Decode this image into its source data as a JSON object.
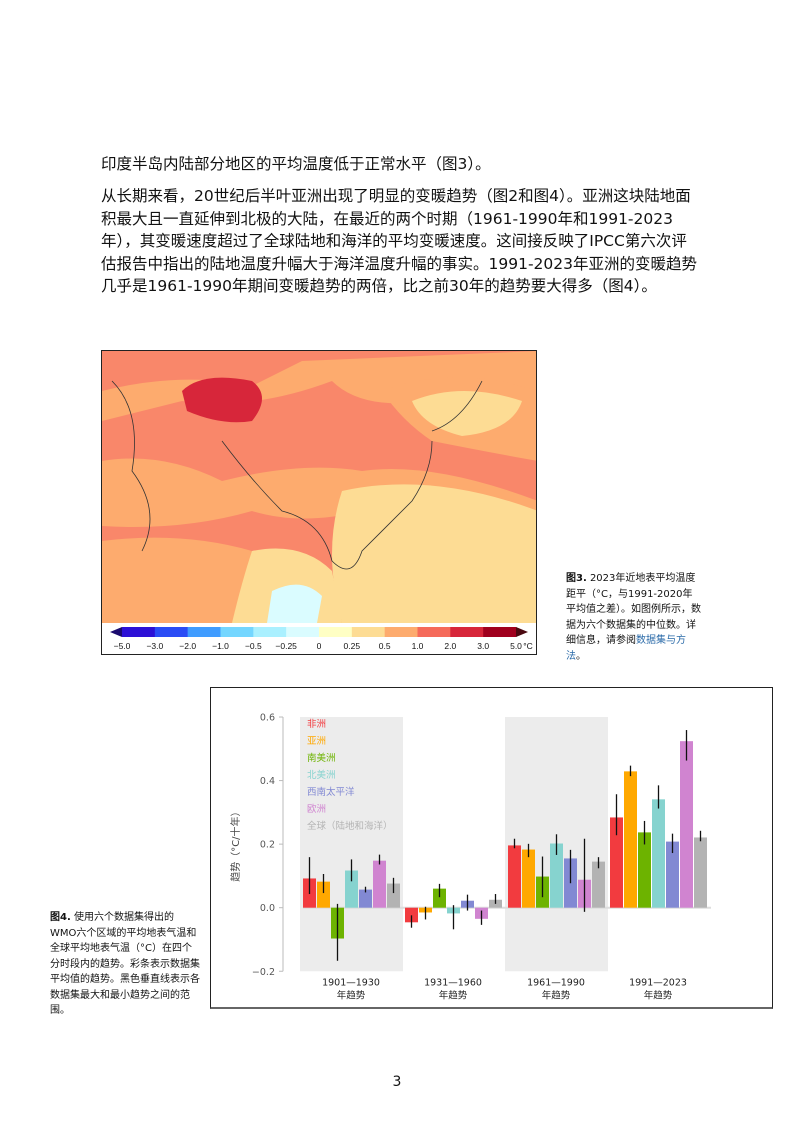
{
  "paragraphs": [
    "印度半岛内陆部分地区的平均温度低于正常水平（图3）。",
    "从长期来看，20世纪后半叶亚洲出现了明显的变暖趋势（图2和图4）。亚洲这块陆地面积最大且一直延伸到北极的大陆，在最近的两个时期（1961-1990年和1991-2023年），其变暖速度超过了全球陆地和海洋的平均变暖速度。这间接反映了IPCC第六次评估报告中指出的陆地温度升幅大于海洋温度升幅的事实。1991-2023年亚洲的变暖趋势几乎是1961-1990年期间变暖趋势的两倍，比之前30年的趋势要大得多（图4）。"
  ],
  "figure3": {
    "caption_label": "图3.",
    "caption_text": " 2023年近地表平均温度距平（°C，与1991-2020年平均值之差）。如图例所示，数据为六个数据集的中位数。详细信息，请参阅",
    "caption_link": "数据集与方法",
    "caption_end": "。",
    "legend_ticks": [
      "−5.0",
      "−3.0",
      "−2.0",
      "−1.0",
      "−0.5",
      "−0.25",
      "0",
      "0.25",
      "0.5",
      "1.0",
      "2.0",
      "3.0",
      "5.0"
    ],
    "legend_unit": "°C",
    "legend_colors": [
      "#1a0a6e",
      "#2c10d6",
      "#2a4cf5",
      "#3f9cff",
      "#74d6ff",
      "#aaf0ff",
      "#dafcff",
      "#ffffc4",
      "#fddc94",
      "#fdab6e",
      "#f56a5a",
      "#d7263a",
      "#a0001e",
      "#4a0810"
    ]
  },
  "figure4": {
    "caption_label": "图4.",
    "caption_text": " 使用六个数据集得出的WMO六个区域的平均地表气温和全球平均地表气温（°C）在四个分时段内的趋势。彩条表示数据集平均值的趋势。黑色垂直线表示各数据集最大和最小趋势之间的范围。"
  },
  "chart_data": {
    "type": "bar",
    "ylabel": "趋势（°C/十年）",
    "ylim": [
      -0.2,
      0.6
    ],
    "yticks": [
      "0.6",
      "0.4",
      "0.2",
      "0.0",
      "−0.2"
    ],
    "ytick_values": [
      0.6,
      0.4,
      0.2,
      0.0,
      -0.2
    ],
    "categories": [
      "1901—1930\n年趋势",
      "1931—1960\n年趋势",
      "1961—1990\n年趋势",
      "1991—2023\n年趋势"
    ],
    "category_lines": [
      [
        "1901—1930",
        "年趋势"
      ],
      [
        "1931—1960",
        "年趋势"
      ],
      [
        "1961—1990",
        "年趋势"
      ],
      [
        "1991—2023",
        "年趋势"
      ]
    ],
    "shaded_categories": [
      0,
      2
    ],
    "series": [
      {
        "name": "非洲",
        "color": "#f23b3f",
        "values": [
          0.092,
          -0.046,
          0.196,
          0.284
        ],
        "min": [
          0.043,
          -0.063,
          0.187,
          0.228
        ],
        "max": [
          0.159,
          -0.024,
          0.217,
          0.357
        ]
      },
      {
        "name": "亚洲",
        "color": "#ffa800",
        "values": [
          0.082,
          -0.015,
          0.183,
          0.429
        ],
        "min": [
          0.046,
          -0.037,
          0.159,
          0.414
        ],
        "max": [
          0.106,
          0.003,
          0.201,
          0.447
        ]
      },
      {
        "name": "南美洲",
        "color": "#6db300",
        "values": [
          -0.097,
          0.06,
          0.098,
          0.237
        ],
        "min": [
          -0.167,
          0.033,
          0.033,
          0.199
        ],
        "max": [
          0.012,
          0.075,
          0.161,
          0.273
        ]
      },
      {
        "name": "北美洲",
        "color": "#86d3cf",
        "values": [
          0.117,
          -0.018,
          0.202,
          0.341
        ],
        "min": [
          0.083,
          -0.068,
          0.166,
          0.312
        ],
        "max": [
          0.152,
          0.008,
          0.231,
          0.385
        ]
      },
      {
        "name": "西南太平洋",
        "color": "#8289d3",
        "values": [
          0.057,
          0.022,
          0.155,
          0.208
        ],
        "min": [
          0.048,
          -0.009,
          0.077,
          0.172
        ],
        "max": [
          0.066,
          0.041,
          0.182,
          0.233
        ]
      },
      {
        "name": "欧洲",
        "color": "#d084d0",
        "values": [
          0.148,
          -0.035,
          0.088,
          0.524
        ],
        "min": [
          0.136,
          -0.054,
          -0.013,
          0.463
        ],
        "max": [
          0.167,
          -0.009,
          0.217,
          0.559
        ]
      },
      {
        "name": "全球（陆地和海洋）",
        "color": "#b3b3b3",
        "values": [
          0.076,
          0.025,
          0.145,
          0.221
        ],
        "min": [
          0.046,
          0.012,
          0.124,
          0.209
        ],
        "max": [
          0.094,
          0.043,
          0.159,
          0.242
        ]
      }
    ]
  },
  "page_number": "3"
}
